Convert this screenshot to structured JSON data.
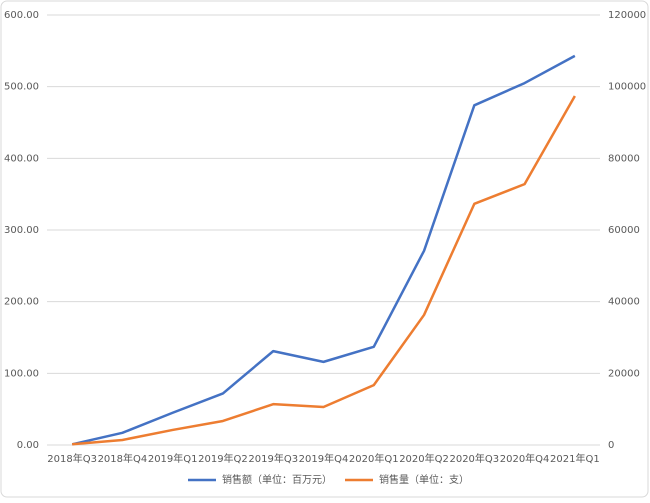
{
  "chart_data": {
    "type": "line",
    "categories": [
      "2018年Q3",
      "2018年Q4",
      "2019年Q1",
      "2019年Q2",
      "2019年Q3",
      "2019年Q4",
      "2020年Q1",
      "2020年Q2",
      "2020年Q3",
      "2020年Q4",
      "2021年Q1"
    ],
    "series": [
      {
        "name": "销售额（单位：百万元）",
        "color": "#4472c4",
        "values": [
          1,
          17,
          45,
          72,
          131,
          116,
          137,
          271,
          474,
          505,
          543
        ]
      },
      {
        "name": "销售量（单位：支）",
        "color": "#ed7d31",
        "axis": "y2",
        "values": [
          200,
          1400,
          4200,
          6700,
          11400,
          10600,
          16700,
          36300,
          67300,
          72800,
          97400
        ]
      }
    ],
    "ylim": [
      0,
      600
    ],
    "yticks": [
      {
        "value": 0,
        "label": "0.00"
      },
      {
        "value": 100,
        "label": "100.00"
      },
      {
        "value": 200,
        "label": "200.00"
      },
      {
        "value": 300,
        "label": "300.00"
      },
      {
        "value": 400,
        "label": "400.00"
      },
      {
        "value": 500,
        "label": "500.00"
      },
      {
        "value": 600,
        "label": "600.00"
      }
    ],
    "y2lim": [
      0,
      120000
    ],
    "y2ticks": [
      0,
      20000,
      40000,
      60000,
      80000,
      100000,
      120000
    ],
    "grid": true,
    "legend": "bottom"
  }
}
